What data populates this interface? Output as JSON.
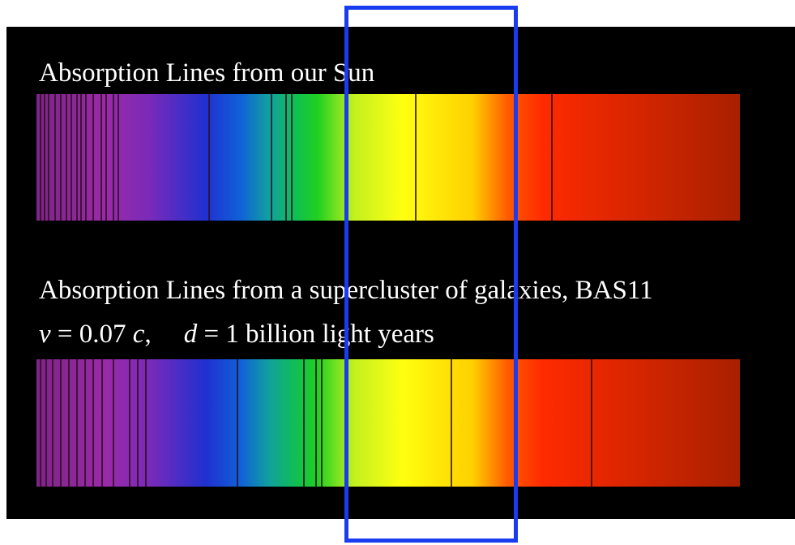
{
  "slide": {
    "sun_caption": "Absorption Lines from our Sun",
    "galaxy_caption": "Absorption Lines from a supercluster of galaxies, BAS11",
    "galaxy_params": [
      "v",
      " = 0.07 ",
      "c",
      ",",
      "d",
      " = 1 billion light years"
    ]
  }
}
